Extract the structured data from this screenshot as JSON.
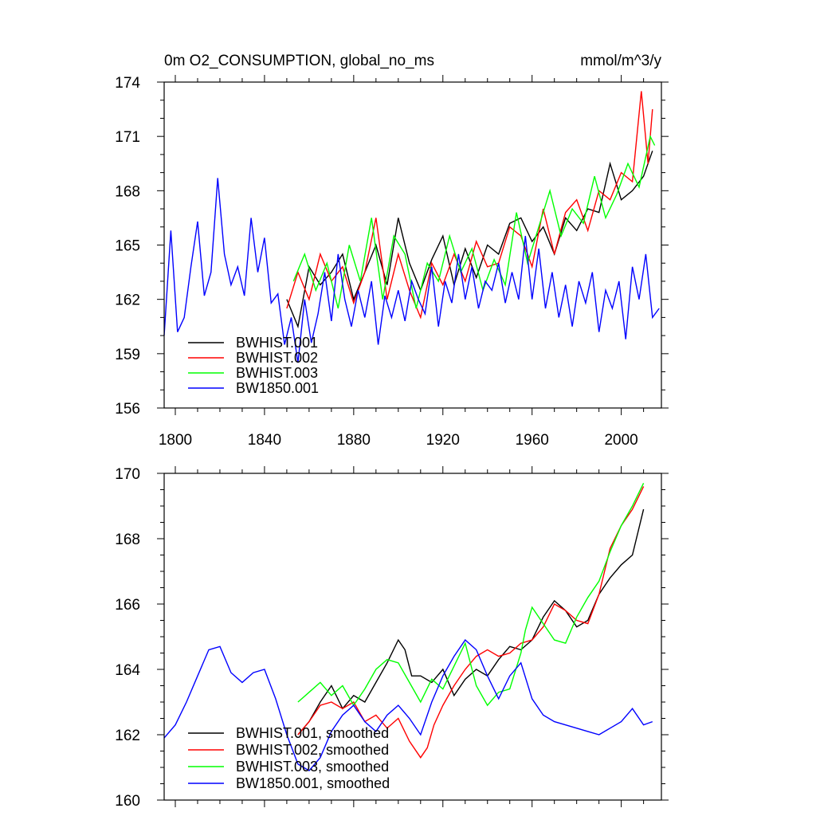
{
  "page": {
    "title_left": "0m O2_CONSUMPTION, global_no_ms",
    "title_right": "mmol/m^3/y"
  },
  "chart_data": [
    {
      "type": "line",
      "title": "0m O2_CONSUMPTION, global_no_ms",
      "units": "mmol/m^3/y",
      "xlabel": "",
      "ylabel": "",
      "xlim": [
        1795,
        2018
      ],
      "ylim": [
        156,
        174
      ],
      "x_ticks": [
        1800,
        1840,
        1880,
        1920,
        1960,
        2000
      ],
      "x_tick_labels": [
        "1800",
        "1840",
        "1880",
        "1920",
        "1960",
        "2000"
      ],
      "y_ticks": [
        156,
        159,
        162,
        165,
        168,
        171,
        174
      ],
      "y_tick_labels": [
        "156",
        "159",
        "162",
        "165",
        "168",
        "171",
        "174"
      ],
      "legend_position": "bottom-left",
      "series": [
        {
          "name": "BWHIST.001",
          "color": "#000000",
          "x": [
            1850,
            1855,
            1860,
            1865,
            1870,
            1875,
            1880,
            1885,
            1890,
            1895,
            1900,
            1905,
            1910,
            1915,
            1920,
            1925,
            1930,
            1935,
            1940,
            1945,
            1950,
            1955,
            1960,
            1965,
            1970,
            1975,
            1980,
            1985,
            1990,
            1995,
            2000,
            2005,
            2010,
            2014
          ],
          "values": [
            162.0,
            160.5,
            163.8,
            162.8,
            163.5,
            164.5,
            162.0,
            163.5,
            165.0,
            162.8,
            166.5,
            164.0,
            162.5,
            164.2,
            165.5,
            162.8,
            164.8,
            163.2,
            165.0,
            164.5,
            166.2,
            166.5,
            165.2,
            166.0,
            164.5,
            166.5,
            165.8,
            167.0,
            166.8,
            169.5,
            167.5,
            168.0,
            168.8,
            170.2
          ]
        },
        {
          "name": "BWHIST.002",
          "color": "#ff0000",
          "x": [
            1850,
            1855,
            1860,
            1865,
            1870,
            1875,
            1880,
            1885,
            1890,
            1895,
            1900,
            1905,
            1910,
            1915,
            1920,
            1925,
            1930,
            1935,
            1940,
            1945,
            1950,
            1955,
            1960,
            1965,
            1970,
            1975,
            1980,
            1985,
            1990,
            1995,
            2000,
            2005,
            2009,
            2012,
            2014
          ],
          "values": [
            161.5,
            163.5,
            162.0,
            164.5,
            163.0,
            163.8,
            161.8,
            163.5,
            166.5,
            162.0,
            164.5,
            162.5,
            161.0,
            164.0,
            162.8,
            164.5,
            163.0,
            165.2,
            163.8,
            164.0,
            166.0,
            165.5,
            163.8,
            167.0,
            164.5,
            166.8,
            167.5,
            165.8,
            168.0,
            167.5,
            169.0,
            168.5,
            173.5,
            169.5,
            172.5
          ]
        },
        {
          "name": "BWHIST.003",
          "color": "#00ff00",
          "x": [
            1853,
            1858,
            1863,
            1868,
            1873,
            1878,
            1883,
            1888,
            1893,
            1898,
            1903,
            1908,
            1913,
            1918,
            1923,
            1928,
            1933,
            1938,
            1943,
            1948,
            1953,
            1958,
            1963,
            1968,
            1973,
            1978,
            1983,
            1988,
            1993,
            1998,
            2003,
            2008,
            2013,
            2015
          ],
          "values": [
            163.0,
            164.5,
            162.5,
            164.0,
            161.5,
            165.0,
            163.0,
            166.5,
            162.0,
            165.5,
            164.5,
            161.5,
            164.0,
            163.0,
            165.5,
            163.5,
            164.8,
            162.5,
            164.2,
            162.8,
            166.8,
            164.0,
            166.0,
            168.0,
            165.5,
            167.0,
            166.2,
            168.8,
            166.5,
            167.8,
            169.5,
            168.2,
            171.0,
            170.5
          ]
        },
        {
          "name": "BW1850.001",
          "color": "#0000ff",
          "x": [
            1795,
            1798,
            1801,
            1804,
            1807,
            1810,
            1813,
            1816,
            1819,
            1822,
            1825,
            1828,
            1831,
            1834,
            1837,
            1840,
            1843,
            1846,
            1849,
            1852,
            1855,
            1858,
            1861,
            1864,
            1867,
            1870,
            1873,
            1876,
            1879,
            1882,
            1885,
            1888,
            1891,
            1894,
            1897,
            1900,
            1903,
            1906,
            1909,
            1912,
            1915,
            1918,
            1921,
            1924,
            1927,
            1930,
            1933,
            1936,
            1939,
            1942,
            1945,
            1948,
            1951,
            1954,
            1957,
            1960,
            1963,
            1966,
            1969,
            1972,
            1975,
            1978,
            1981,
            1984,
            1987,
            1990,
            1993,
            1996,
            1999,
            2002,
            2005,
            2008,
            2011,
            2014,
            2017
          ],
          "values": [
            160.0,
            165.8,
            160.2,
            161.0,
            163.8,
            166.3,
            162.2,
            163.5,
            168.7,
            164.5,
            162.8,
            163.8,
            162.2,
            166.5,
            163.5,
            165.4,
            161.8,
            162.3,
            159.5,
            161.0,
            158.5,
            162.0,
            159.6,
            161.2,
            163.5,
            160.8,
            164.5,
            162.0,
            160.5,
            162.5,
            161.0,
            163.0,
            159.5,
            162.2,
            161.0,
            162.5,
            160.8,
            163.0,
            162.0,
            161.2,
            163.8,
            160.5,
            163.0,
            161.8,
            164.5,
            162.0,
            163.8,
            161.5,
            163.0,
            162.5,
            164.0,
            161.8,
            163.5,
            162.0,
            165.5,
            162.0,
            164.8,
            161.5,
            163.5,
            161.0,
            162.8,
            160.5,
            163.0,
            161.8,
            163.5,
            160.2,
            162.5,
            161.5,
            163.0,
            159.8,
            163.8,
            162.0,
            164.5,
            161.0,
            161.5
          ]
        }
      ]
    },
    {
      "type": "line",
      "title": "",
      "xlabel": "",
      "ylabel": "",
      "xlim": [
        1795,
        2018
      ],
      "ylim": [
        160,
        170
      ],
      "x_ticks": [
        1800,
        1840,
        1880,
        1920,
        1960,
        2000
      ],
      "x_tick_labels": [],
      "y_ticks": [
        160,
        162,
        164,
        166,
        168,
        170
      ],
      "y_tick_labels": [
        "160",
        "162",
        "164",
        "166",
        "168",
        "170"
      ],
      "legend_position": "bottom-left",
      "series": [
        {
          "name": "BWHIST.001, smoothed",
          "color": "#000000",
          "x": [
            1855,
            1860,
            1865,
            1870,
            1875,
            1880,
            1885,
            1890,
            1895,
            1900,
            1903,
            1906,
            1910,
            1915,
            1920,
            1925,
            1930,
            1935,
            1940,
            1945,
            1950,
            1955,
            1960,
            1965,
            1970,
            1975,
            1980,
            1985,
            1990,
            1995,
            2000,
            2005,
            2010
          ],
          "values": [
            162.0,
            162.4,
            163.0,
            163.5,
            162.8,
            163.2,
            163.0,
            163.6,
            164.2,
            164.9,
            164.6,
            163.8,
            163.8,
            163.6,
            164.0,
            163.2,
            163.7,
            164.0,
            163.8,
            164.3,
            164.7,
            164.6,
            164.9,
            165.6,
            166.1,
            165.8,
            165.3,
            165.5,
            166.3,
            166.8,
            167.2,
            167.5,
            168.9
          ]
        },
        {
          "name": "BWHIST.002, smoothed",
          "color": "#ff0000",
          "x": [
            1855,
            1860,
            1865,
            1870,
            1875,
            1880,
            1885,
            1890,
            1895,
            1900,
            1905,
            1910,
            1913,
            1916,
            1920,
            1925,
            1930,
            1935,
            1940,
            1945,
            1950,
            1955,
            1960,
            1965,
            1970,
            1975,
            1980,
            1985,
            1990,
            1995,
            2000,
            2005,
            2010
          ],
          "values": [
            162.0,
            162.4,
            162.9,
            163.0,
            162.8,
            163.0,
            162.4,
            162.6,
            162.2,
            162.5,
            161.8,
            161.3,
            161.6,
            162.3,
            162.9,
            163.5,
            164.0,
            164.4,
            164.6,
            164.4,
            164.5,
            164.8,
            164.9,
            165.3,
            166.0,
            165.8,
            165.5,
            165.4,
            166.3,
            167.7,
            168.4,
            168.9,
            169.6
          ]
        },
        {
          "name": "BWHIST.003, smoothed",
          "color": "#00ff00",
          "x": [
            1855,
            1860,
            1865,
            1870,
            1875,
            1880,
            1885,
            1890,
            1895,
            1900,
            1905,
            1910,
            1915,
            1920,
            1925,
            1930,
            1935,
            1940,
            1945,
            1950,
            1955,
            1957,
            1960,
            1965,
            1970,
            1975,
            1980,
            1985,
            1990,
            1995,
            2000,
            2005,
            2010
          ],
          "values": [
            163.0,
            163.3,
            163.6,
            163.2,
            163.5,
            162.9,
            163.4,
            164.0,
            164.3,
            164.2,
            163.6,
            163.0,
            163.7,
            163.4,
            164.1,
            164.8,
            163.5,
            162.9,
            163.3,
            163.4,
            164.5,
            165.2,
            165.9,
            165.4,
            164.9,
            164.8,
            165.6,
            166.2,
            166.7,
            167.6,
            168.4,
            169.0,
            169.7
          ]
        },
        {
          "name": "BW1850.001, smoothed",
          "color": "#0000ff",
          "x": [
            1795,
            1800,
            1805,
            1810,
            1815,
            1820,
            1825,
            1830,
            1835,
            1840,
            1845,
            1850,
            1855,
            1860,
            1865,
            1870,
            1875,
            1880,
            1885,
            1890,
            1895,
            1900,
            1905,
            1910,
            1915,
            1920,
            1925,
            1930,
            1935,
            1940,
            1945,
            1950,
            1955,
            1960,
            1965,
            1970,
            1975,
            1980,
            1985,
            1990,
            1995,
            2000,
            2005,
            2010,
            2014
          ],
          "values": [
            161.9,
            162.3,
            163.0,
            163.8,
            164.6,
            164.7,
            163.9,
            163.6,
            163.9,
            164.0,
            163.1,
            162.0,
            161.1,
            160.9,
            161.3,
            162.1,
            162.6,
            162.9,
            162.4,
            162.1,
            162.6,
            162.9,
            162.5,
            162.0,
            163.0,
            163.8,
            164.4,
            164.9,
            164.6,
            163.8,
            163.1,
            163.8,
            164.2,
            163.1,
            162.6,
            162.4,
            162.3,
            162.2,
            162.1,
            162.0,
            162.2,
            162.4,
            162.8,
            162.3,
            162.4
          ]
        }
      ]
    }
  ]
}
